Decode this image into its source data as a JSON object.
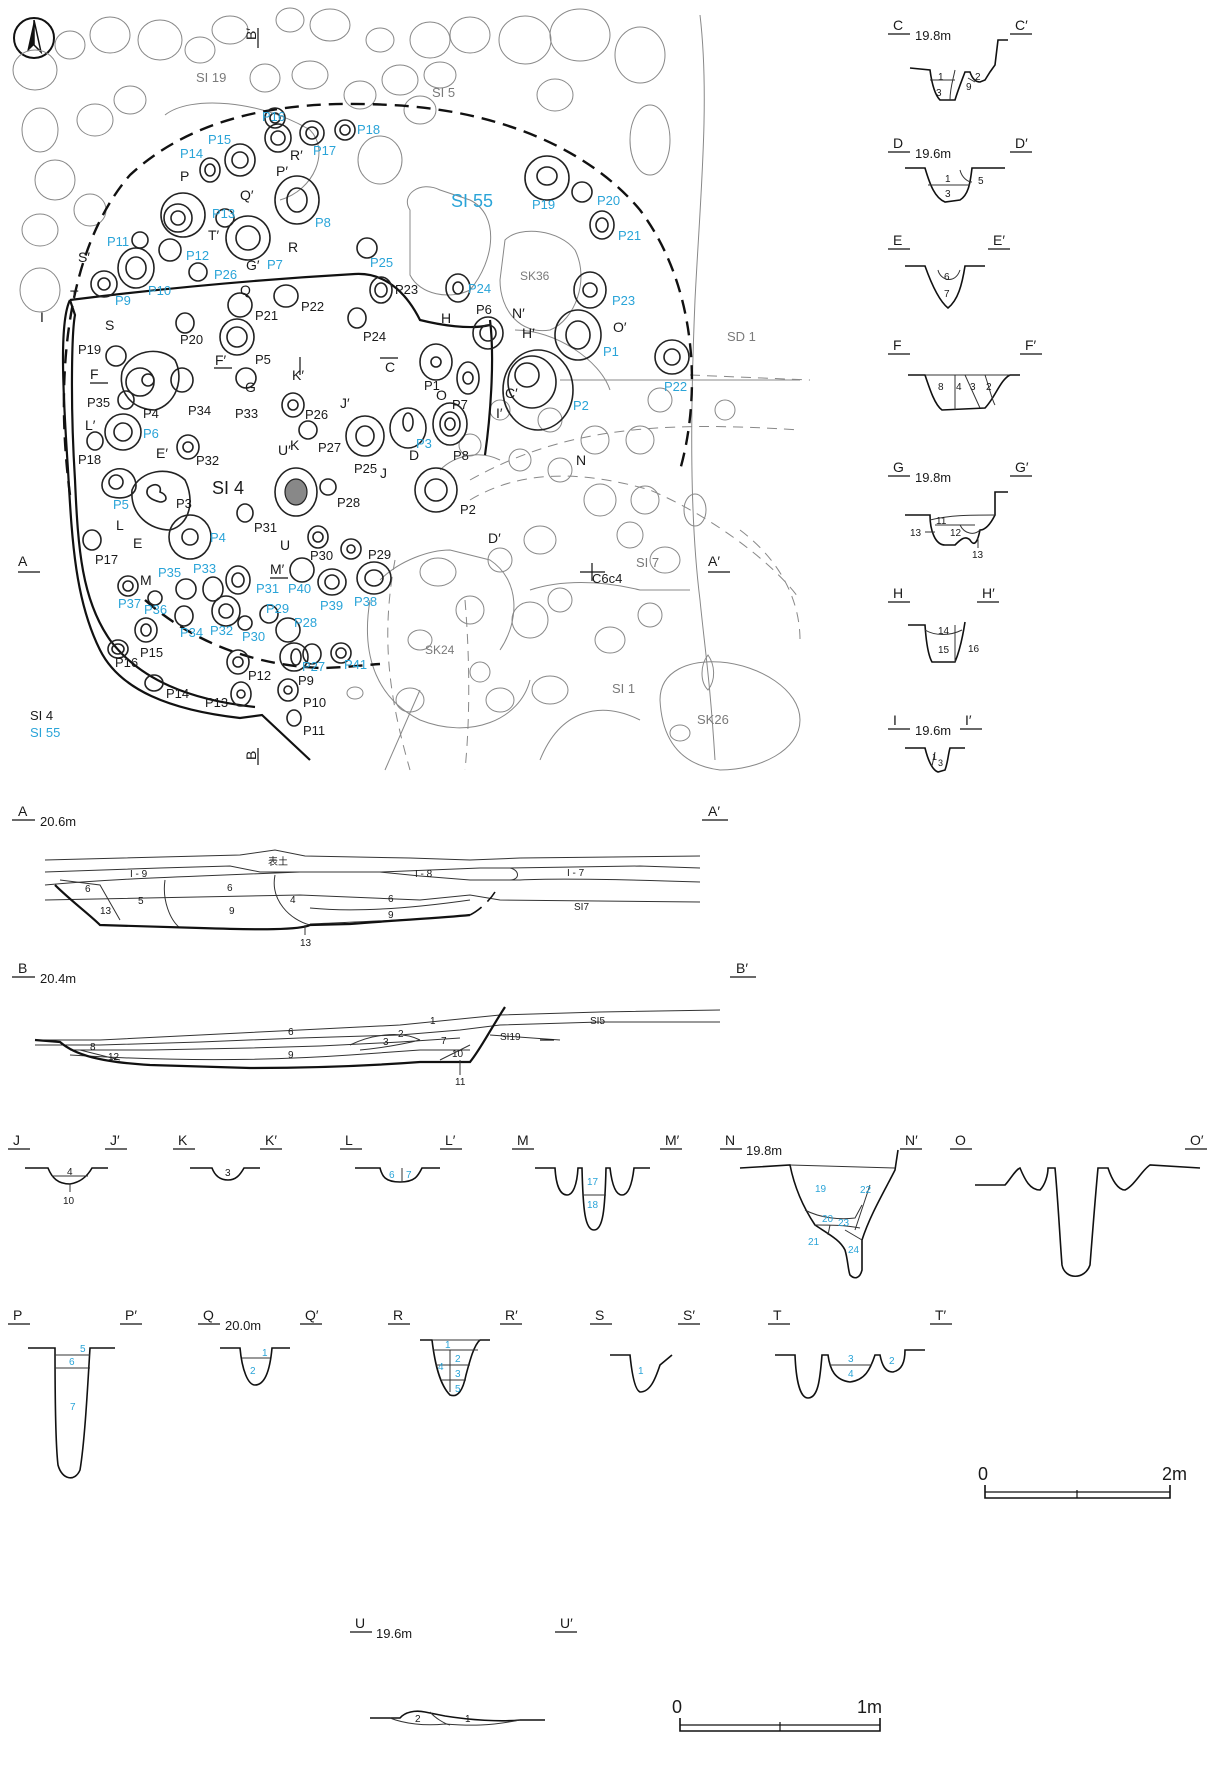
{
  "plan": {
    "features": {
      "si19": "SI 19",
      "si5": "SI 5",
      "si55": "SI 55",
      "sk36": "SK36",
      "sd1": "SD 1",
      "si4": "SI 4",
      "si7": "SI 7",
      "sk24": "SK24",
      "si1": "SI 1",
      "sk26": "SK26",
      "grid_point": "C6c4"
    },
    "legend": {
      "line1": "SI 4",
      "line2": "SI 55"
    },
    "section_marks": {
      "a": "A",
      "a_prime": "A′",
      "b": "B",
      "b_prime": "B′",
      "c": "C",
      "c_prime": "C′",
      "d": "D",
      "d_prime": "D′",
      "e": "E",
      "e_prime": "E′",
      "f": "F",
      "f_prime": "F′",
      "g": "G",
      "g_prime": "G′",
      "h": "H",
      "h_prime": "H′",
      "i": "I",
      "i_prime": "I′",
      "j": "J",
      "j_prime": "J′",
      "k": "K",
      "k_prime": "K′",
      "l": "L",
      "l_prime": "L′",
      "m": "M",
      "m_prime": "M′",
      "n": "N",
      "n_prime": "N′",
      "o": "O",
      "o_prime": "O′",
      "p": "P",
      "p_prime": "P′",
      "q": "Q",
      "q_prime": "Q′",
      "r": "R",
      "r_prime": "R′",
      "s": "S",
      "s_prime": "S′",
      "t": "T",
      "t_prime": "T′",
      "u": "U",
      "u_prime": "U′"
    },
    "pits_si55": [
      "P15",
      "P16",
      "P14",
      "P17",
      "P18",
      "P13",
      "P11",
      "P12",
      "P10",
      "P9",
      "P26",
      "P7",
      "P8",
      "P25",
      "P24",
      "P19",
      "P20",
      "P21",
      "P23",
      "P1",
      "P2",
      "P22",
      "P6",
      "P5",
      "P3",
      "P4",
      "P31",
      "P33",
      "P35",
      "P37",
      "P36",
      "P34",
      "P32",
      "P30",
      "P29",
      "P28",
      "P27",
      "P41",
      "P40",
      "P39",
      "P38"
    ],
    "pits_si4": [
      "P21",
      "P22",
      "P23",
      "P24",
      "P6",
      "P19",
      "P20",
      "P5",
      "P4",
      "P34",
      "P33",
      "P35",
      "P18",
      "P32",
      "P26",
      "P27",
      "P1",
      "P7",
      "P8",
      "P3",
      "P25",
      "P28",
      "P2",
      "P31",
      "P17",
      "P30",
      "P29",
      "P15",
      "P16",
      "P14",
      "P13",
      "P12",
      "P9",
      "P10",
      "P11"
    ]
  },
  "sections": {
    "a": {
      "elevation": "20.6m",
      "layers": [
        "表土",
        "I - 9",
        "I - 8",
        "I - 7",
        "6",
        "6",
        "6",
        "5",
        "4",
        "13",
        "9",
        "9",
        "SI7",
        "13"
      ]
    },
    "b": {
      "elevation": "20.4m",
      "layers": [
        "1",
        "SI5",
        "6",
        "2",
        "3",
        "7",
        "SI19",
        "8",
        "12",
        "9",
        "10",
        "11"
      ]
    },
    "c": {
      "elevation": "19.8m",
      "layers": [
        "1",
        "2",
        "3",
        "9"
      ]
    },
    "d": {
      "elevation": "19.6m",
      "layers": [
        "1",
        "3",
        "5"
      ]
    },
    "e": {
      "layers": [
        "6",
        "7"
      ]
    },
    "f": {
      "layers": [
        "8",
        "4",
        "3",
        "2"
      ]
    },
    "g": {
      "elevation": "19.8m",
      "layers": [
        "11",
        "12",
        "13",
        "13"
      ]
    },
    "h": {
      "layers": [
        "14",
        "15",
        "16"
      ]
    },
    "i": {
      "elevation": "19.6m",
      "layers": [
        "1",
        "3"
      ]
    },
    "j": {
      "layers": [
        "4",
        "10"
      ]
    },
    "k": {
      "layers": [
        "3"
      ]
    },
    "l": {
      "layers": [
        "6",
        "7"
      ]
    },
    "m": {
      "layers": [
        "17",
        "18"
      ]
    },
    "n": {
      "elevation": "19.8m",
      "layers": [
        "19",
        "22",
        "20",
        "23",
        "21",
        "24"
      ]
    },
    "p": {
      "layers": [
        "5",
        "6",
        "7"
      ]
    },
    "q": {
      "elevation": "20.0m",
      "layers": [
        "1",
        "2"
      ]
    },
    "r": {
      "layers": [
        "1",
        "2",
        "4",
        "3",
        "5"
      ]
    },
    "s": {
      "layers": [
        "1"
      ]
    },
    "t": {
      "layers": [
        "3",
        "4",
        "2"
      ]
    },
    "u": {
      "elevation": "19.6m",
      "layers": [
        "2",
        "1"
      ]
    }
  },
  "scales": {
    "large": {
      "start": "0",
      "end": "2m"
    },
    "small": {
      "start": "0",
      "end": "1m"
    }
  },
  "colors": {
    "si55": "#2aa4d8",
    "ink": "#1a1a1a",
    "gray": "#7a7a7a"
  }
}
